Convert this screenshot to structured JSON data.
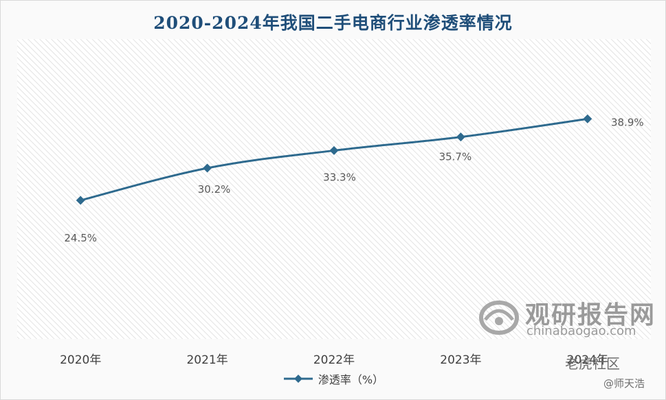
{
  "chart_data": {
    "type": "line",
    "title": "2020-2024年我国二手电商行业渗透率情况",
    "categories": [
      "2020年",
      "2021年",
      "2022年",
      "2023年",
      "2024年"
    ],
    "series": [
      {
        "name": "渗透率（%）",
        "values": [
          24.5,
          30.2,
          33.3,
          35.7,
          38.9
        ],
        "labels": [
          "24.5%",
          "30.2%",
          "33.3%",
          "35.7%",
          "38.9%"
        ],
        "color": "#2e6a8e"
      }
    ],
    "ylim": [
      0,
      53
    ],
    "grid": false,
    "legend": "bottom-center"
  },
  "watermark": {
    "cn": "观研报告网",
    "en": "chinabaogao.com"
  },
  "credit": {
    "community": "老虎社区",
    "author": "@师天浩"
  }
}
